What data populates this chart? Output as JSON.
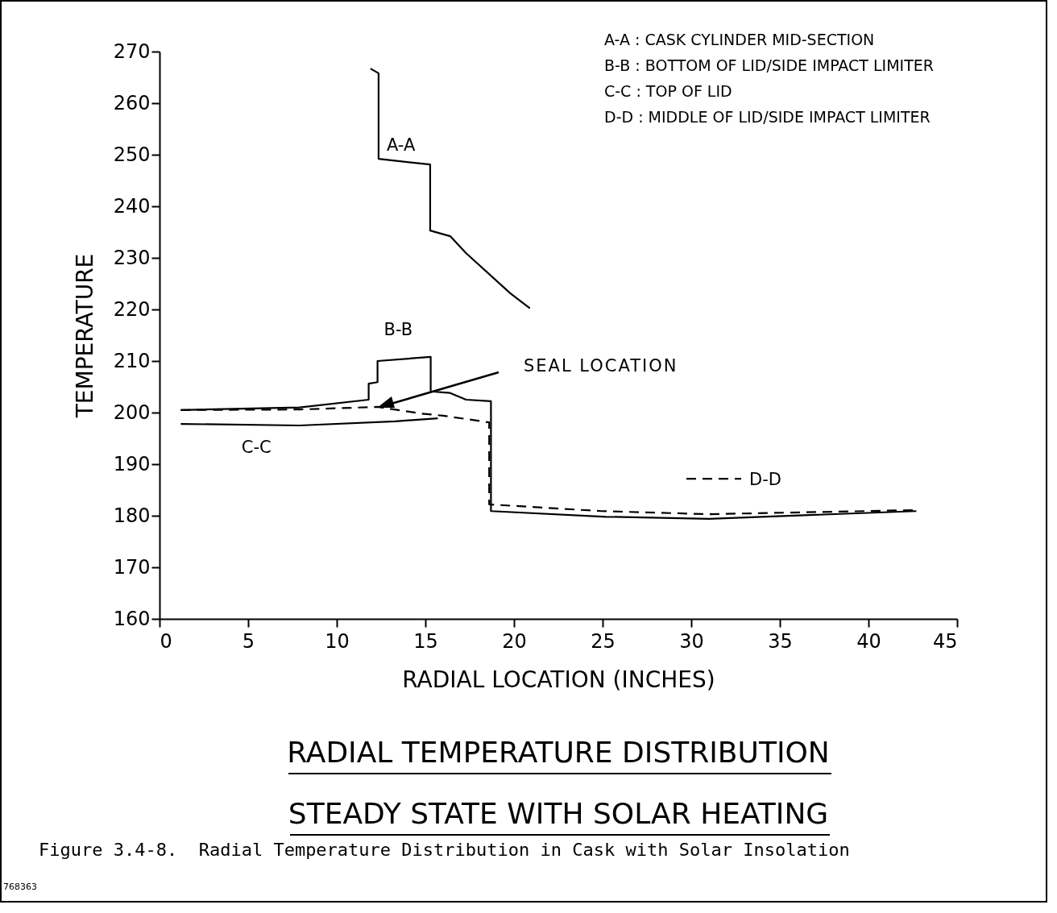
{
  "chart_data": {
    "type": "line",
    "title": "RADIAL TEMPERATURE DISTRIBUTION",
    "subtitle": "STEADY STATE WITH SOLAR HEATING",
    "xlabel": "RADIAL LOCATION (INCHES)",
    "ylabel": "TEMPERATURE",
    "xlim": [
      0,
      45
    ],
    "ylim": [
      160,
      270
    ],
    "xticks": [
      0,
      5,
      10,
      15,
      20,
      25,
      30,
      35,
      40,
      45
    ],
    "yticks": [
      160,
      170,
      180,
      190,
      200,
      210,
      220,
      230,
      240,
      250,
      260,
      270
    ],
    "series": [
      {
        "name": "A-A",
        "color": "#000000",
        "line_style": "solid",
        "x": [
          11.9,
          12.36,
          12.36,
          15.27,
          15.27,
          16.4,
          17.3,
          19.8,
          20.9
        ],
        "values": [
          266.7,
          265.8,
          249.2,
          248.1,
          235.3,
          234.2,
          230.9,
          223.1,
          220.2
        ]
      },
      {
        "name": "B-B",
        "color": "#000000",
        "line_style": "solid",
        "x": [
          1.2,
          7.9,
          11.8,
          11.8,
          12.3,
          12.3,
          15.3,
          15.3,
          16.4,
          17.3,
          18.7,
          18.7,
          25.2,
          31.0,
          42.7
        ],
        "values": [
          200.5,
          201.0,
          202.5,
          205.6,
          205.9,
          210.0,
          210.8,
          204.1,
          203.8,
          202.5,
          202.2,
          180.9,
          179.8,
          179.4,
          180.9
        ]
      },
      {
        "name": "C-C",
        "color": "#000000",
        "line_style": "solid",
        "x": [
          1.2,
          7.9,
          13.3,
          15.7
        ],
        "values": [
          197.8,
          197.5,
          198.3,
          198.9
        ]
      },
      {
        "name": "D-D",
        "color": "#000000",
        "line_style": "dashed",
        "x": [
          1.2,
          7.9,
          12.3,
          14.8,
          16.0,
          18.6,
          18.6,
          24.9,
          31.0,
          42.7
        ],
        "values": [
          200.5,
          200.6,
          201.1,
          199.8,
          199.4,
          198.1,
          182.2,
          180.9,
          180.3,
          181.1
        ]
      }
    ],
    "annotations": [
      "A-A : CASK CYLINDER MID-SECTION",
      "B-B : BOTTOM OF LID/SIDE IMPACT LIMITER",
      "C-C : TOP OF LID",
      "D-D : MIDDLE OF LID/SIDE IMPACT LIMITER",
      "SEAL LOCATION",
      "Figure 3.4-8.  Radial Temperature Distribution in Cask with Solar Insolation",
      "768363"
    ]
  }
}
